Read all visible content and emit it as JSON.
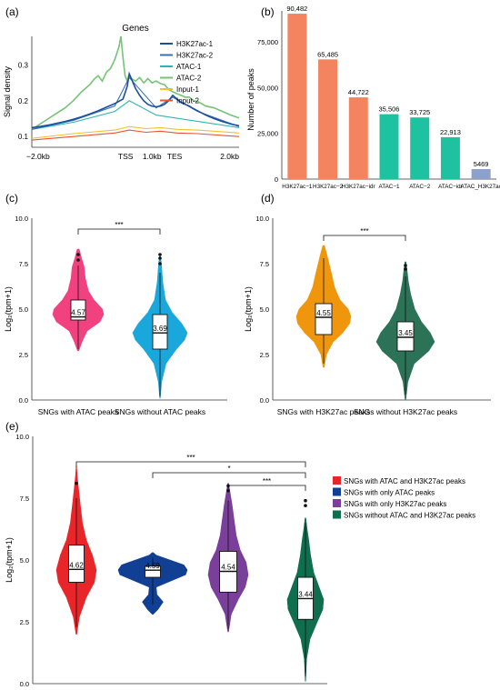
{
  "chart_data": [
    {
      "panel": "(a)",
      "type": "line",
      "title": "Genes",
      "ylabel": "Signal density",
      "x_ticks": [
        "−2.0kb",
        "TSS",
        "1.0kb",
        "TES",
        "2.0kb"
      ],
      "y_ticks": [
        "0.1",
        "0.2",
        "0.3"
      ],
      "ylim": [
        0.07,
        0.38
      ],
      "series": [
        {
          "name": "H3K27ac-1",
          "color": "#1a4f9c",
          "x": [
            0,
            4,
            8,
            12,
            16,
            20,
            24,
            28,
            32,
            36,
            40,
            44,
            46,
            47,
            48,
            50,
            52,
            54,
            56,
            58,
            60,
            62,
            64,
            66,
            68,
            70,
            72,
            74,
            76,
            78,
            80,
            84,
            88,
            92,
            96,
            100
          ],
          "y": [
            0.125,
            0.128,
            0.132,
            0.137,
            0.142,
            0.148,
            0.155,
            0.163,
            0.172,
            0.182,
            0.192,
            0.205,
            0.24,
            0.275,
            0.262,
            0.235,
            0.215,
            0.2,
            0.19,
            0.185,
            0.183,
            0.185,
            0.19,
            0.2,
            0.215,
            0.205,
            0.195,
            0.19,
            0.185,
            0.178,
            0.172,
            0.16,
            0.15,
            0.142,
            0.135,
            0.13
          ]
        },
        {
          "name": "H3K27ac-2",
          "color": "#3b6fb6",
          "x": [
            0,
            20,
            40,
            47,
            60,
            68,
            80,
            100
          ],
          "y": [
            0.12,
            0.145,
            0.185,
            0.265,
            0.18,
            0.21,
            0.17,
            0.128
          ]
        },
        {
          "name": "ATAC-1",
          "color": "#2ab7b0",
          "x": [
            0,
            20,
            40,
            47,
            60,
            100
          ],
          "y": [
            0.12,
            0.14,
            0.17,
            0.2,
            0.16,
            0.125
          ]
        },
        {
          "name": "ATAC-2",
          "color": "#74c476",
          "x": [
            0,
            4,
            8,
            12,
            16,
            20,
            24,
            28,
            30,
            32,
            34,
            36,
            38,
            40,
            42,
            43,
            44,
            45,
            46,
            47,
            48,
            50,
            52,
            54,
            56,
            58,
            60,
            62,
            64,
            66,
            68,
            70,
            72,
            74,
            76,
            78,
            80,
            84,
            88,
            92,
            96,
            100
          ],
          "y": [
            0.12,
            0.135,
            0.15,
            0.165,
            0.18,
            0.2,
            0.225,
            0.245,
            0.26,
            0.27,
            0.255,
            0.28,
            0.29,
            0.315,
            0.35,
            0.38,
            0.32,
            0.27,
            0.255,
            0.275,
            0.262,
            0.255,
            0.265,
            0.25,
            0.262,
            0.25,
            0.255,
            0.248,
            0.245,
            0.232,
            0.225,
            0.22,
            0.215,
            0.21,
            0.21,
            0.2,
            0.198,
            0.185,
            0.18,
            0.17,
            0.16,
            0.152
          ]
        },
        {
          "name": "Input-1",
          "color": "#f2c12e",
          "x": [
            0,
            20,
            40,
            47,
            55,
            62,
            70,
            80,
            100
          ],
          "y": [
            0.095,
            0.108,
            0.118,
            0.128,
            0.122,
            0.125,
            0.12,
            0.118,
            0.11
          ]
        },
        {
          "name": "Input-2",
          "color": "#e8542f",
          "x": [
            0,
            20,
            40,
            47,
            55,
            62,
            70,
            80,
            100
          ],
          "y": [
            0.09,
            0.1,
            0.11,
            0.118,
            0.112,
            0.115,
            0.11,
            0.108,
            0.1
          ]
        }
      ]
    },
    {
      "panel": "(b)",
      "type": "bar",
      "ylabel": "Number of peaks",
      "y_ticks": [
        "0",
        "25,000",
        "50,000",
        "75,000"
      ],
      "ylim": [
        0,
        92000
      ],
      "categories": [
        "H3K27ac−1",
        "H3K27ac−2",
        "H3K27ac−idr",
        "ATAC−1",
        "ATAC−2",
        "ATAC−idr",
        "ATAC_H3K27ac"
      ],
      "values": [
        90482,
        65485,
        44722,
        35506,
        33725,
        22913,
        5469
      ],
      "value_labels": [
        "90,482",
        "65,485",
        "44,722",
        "35,506",
        "33,725",
        "22,913",
        "5469"
      ],
      "colors": [
        "#f4845f",
        "#f4845f",
        "#f4845f",
        "#1fc2a0",
        "#1fc2a0",
        "#1fc2a0",
        "#8da0cb"
      ]
    },
    {
      "panel": "(c)",
      "type": "violin",
      "ylabel": "Log₂(tpm+1)",
      "y_ticks": [
        "0.0",
        "2.5",
        "5.0",
        "7.5",
        "10.0"
      ],
      "ylim": [
        0,
        10
      ],
      "categories": [
        "SNGs with ATAC peaks",
        "SNGs without ATAC peaks"
      ],
      "medians": [
        4.57,
        3.69
      ],
      "median_labels": [
        "4.57",
        "3.69"
      ],
      "colors": [
        "#f2417f",
        "#1aa7dc"
      ],
      "significance": [
        "***"
      ]
    },
    {
      "panel": "(d)",
      "type": "violin",
      "ylabel": "Log₂(tpm+1)",
      "y_ticks": [
        "0.0",
        "2.5",
        "5.0",
        "7.5",
        "10.0"
      ],
      "ylim": [
        0,
        10
      ],
      "categories": [
        "SNGs with H3K27ac peaks",
        "SNGs without H3K27ac peaks"
      ],
      "medians": [
        4.55,
        3.45
      ],
      "median_labels": [
        "4.55",
        "3.45"
      ],
      "colors": [
        "#f0960c",
        "#2b7257"
      ],
      "significance": [
        "***"
      ]
    },
    {
      "panel": "(e)",
      "type": "violin",
      "ylabel": "Log₂(tpm+1)",
      "y_ticks": [
        "0.0",
        "2.5",
        "5.0",
        "7.5",
        "10.0"
      ],
      "ylim": [
        0,
        10
      ],
      "categories": [
        "SNGs with ATAC and H3K27ac peaks",
        "SNGs with only ATAC peaks",
        "SNGs with only H3K27ac peaks",
        "SNGs without ATAC and H3K27ac peaks"
      ],
      "medians": [
        4.62,
        4.59,
        4.54,
        3.44
      ],
      "median_labels": [
        "4.62",
        "4.59",
        "4.54",
        "3.44"
      ],
      "colors": [
        "#e8262a",
        "#113f93",
        "#7a3f9a",
        "#0f6e4e"
      ],
      "significance": [
        "***",
        "*",
        "***"
      ],
      "legend_position": "right"
    }
  ]
}
